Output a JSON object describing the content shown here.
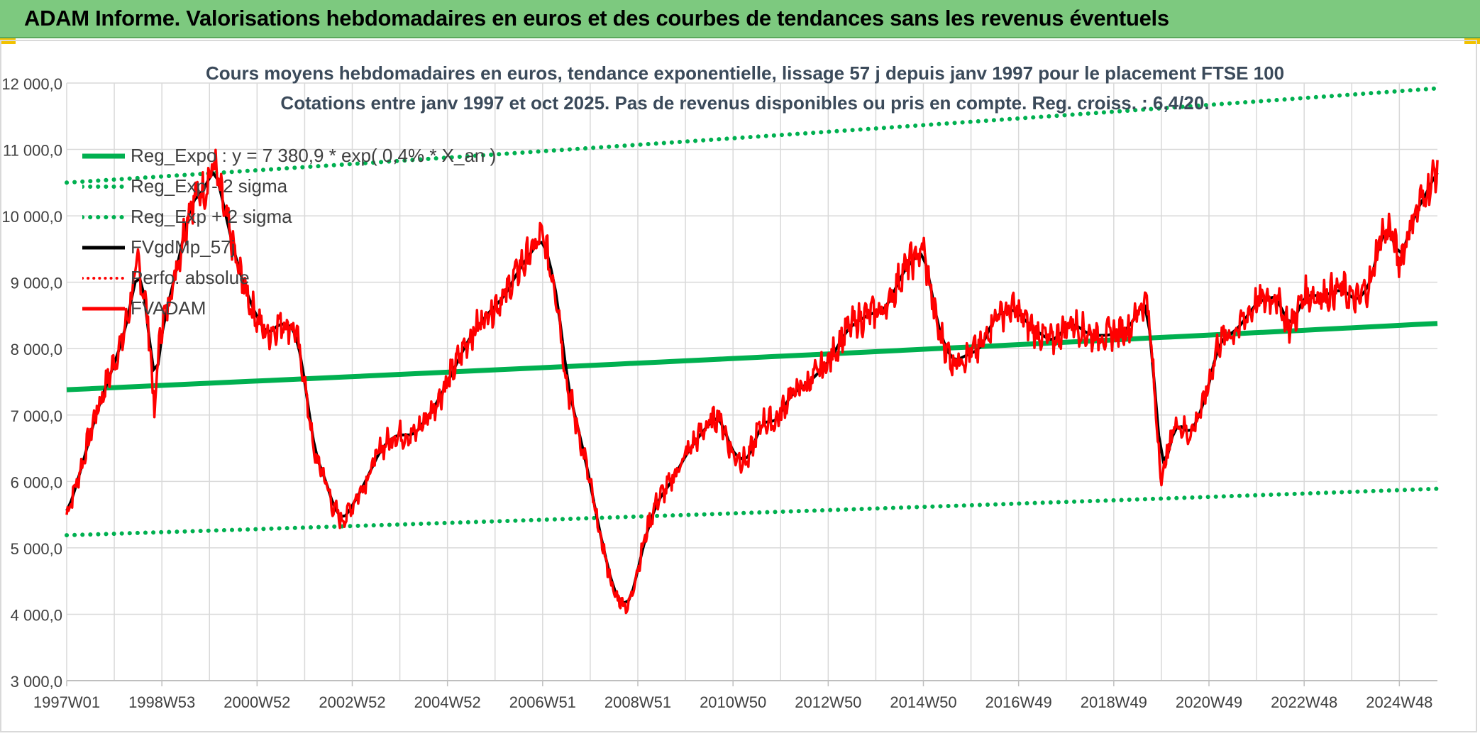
{
  "header": {
    "title": "ADAM Informe. Valorisations hebdomadaires en euros et des courbes de tendances sans les revenus éventuels"
  },
  "colors": {
    "banner": "#7dc97f",
    "reg": "#00b050",
    "sigma": "#00b050",
    "smooth": "#000000",
    "perf": "#ff0000",
    "price": "#ff0000",
    "grid": "#d9d9d9"
  },
  "chart_data": {
    "type": "line",
    "title": "Cours moyens hebdomadaires en euros, tendance exponentielle, lissage 57 j depuis janv 1997 pour le placement FTSE 100",
    "subtitle": "Cotations entre janv 1997 et oct 2025. Pas de revenus disponibles ou pris en compte. Reg. croiss. : 6,4/20.",
    "xlabel": "",
    "ylabel": "",
    "ylim": [
      3000,
      12000
    ],
    "xlim": [
      1997.0,
      2025.8
    ],
    "y_ticks": [
      "3 000,0",
      "4 000,0",
      "5 000,0",
      "6 000,0",
      "7 000,0",
      "8 000,0",
      "9 000,0",
      "10 000,0",
      "11 000,0",
      "12 000,0"
    ],
    "x_ticks": [
      {
        "label": "1997W01",
        "x": 1997.0
      },
      {
        "label": "1998W53",
        "x": 1999.0
      },
      {
        "label": "2000W52",
        "x": 2001.0
      },
      {
        "label": "2002W52",
        "x": 2003.0
      },
      {
        "label": "2004W52",
        "x": 2005.0
      },
      {
        "label": "2006W51",
        "x": 2007.0
      },
      {
        "label": "2008W51",
        "x": 2009.0
      },
      {
        "label": "2010W50",
        "x": 2011.0
      },
      {
        "label": "2012W50",
        "x": 2013.0
      },
      {
        "label": "2014W50",
        "x": 2015.0
      },
      {
        "label": "2016W49",
        "x": 2017.0
      },
      {
        "label": "2018W49",
        "x": 2019.0
      },
      {
        "label": "2020W49",
        "x": 2021.0
      },
      {
        "label": "2022W48",
        "x": 2023.0
      },
      {
        "label": "2024W48",
        "x": 2025.0
      }
    ],
    "grid": true,
    "legend_position": "top-left",
    "series": [
      {
        "name": "Reg_Expo : y = 7 380,9 * exp( 0,4% * X_an )",
        "key": "reg",
        "x": [
          1997.0,
          2025.8
        ],
        "values": [
          7381,
          8380
        ]
      },
      {
        "name": "Reg_Exp - 2 sigma",
        "key": "minus",
        "x": [
          1997.0,
          2025.8
        ],
        "values": [
          5190,
          5890
        ]
      },
      {
        "name": "Reg_Exp + 2 sigma",
        "key": "plus",
        "x": [
          1997.0,
          2025.8
        ],
        "values": [
          10500,
          11920
        ]
      },
      {
        "name": "FVgdMp_57j",
        "key": "smooth"
      },
      {
        "name": "Perfo. absolue",
        "key": "perf"
      },
      {
        "name": "FVADAM",
        "key": "price",
        "x": [
          1997.0,
          1997.3,
          1997.6,
          1997.9,
          1998.2,
          1998.5,
          1998.7,
          1998.85,
          1998.95,
          1999.1,
          1999.3,
          1999.6,
          1999.9,
          2000.1,
          2000.3,
          2000.6,
          2000.9,
          2001.2,
          2001.5,
          2001.8,
          2002.0,
          2002.2,
          2002.4,
          2002.6,
          2002.8,
          2003.0,
          2003.2,
          2003.4,
          2003.6,
          2003.9,
          2004.3,
          2004.7,
          2005.0,
          2005.4,
          2005.8,
          2006.2,
          2006.5,
          2006.8,
          2007.0,
          2007.3,
          2007.5,
          2007.7,
          2007.9,
          2008.2,
          2008.5,
          2008.8,
          2009.0,
          2009.2,
          2009.4,
          2009.7,
          2010.0,
          2010.4,
          2010.7,
          2011.0,
          2011.3,
          2011.6,
          2011.9,
          2012.2,
          2012.6,
          2013.0,
          2013.4,
          2013.8,
          2014.2,
          2014.6,
          2015.0,
          2015.3,
          2015.6,
          2015.9,
          2016.2,
          2016.5,
          2016.9,
          2017.3,
          2017.7,
          2018.1,
          2018.5,
          2018.9,
          2019.3,
          2019.7,
          2020.0,
          2020.15,
          2020.3,
          2020.6,
          2020.9,
          2021.2,
          2021.6,
          2022.0,
          2022.4,
          2022.7,
          2023.0,
          2023.4,
          2023.8,
          2024.1,
          2024.4,
          2024.6,
          2024.8,
          2025.0,
          2025.3,
          2025.6,
          2025.8
        ],
        "values": [
          5500,
          6200,
          7000,
          7600,
          8200,
          9300,
          8500,
          7000,
          8200,
          8600,
          9200,
          10200,
          10400,
          10800,
          10100,
          9200,
          8600,
          8200,
          8400,
          8300,
          7500,
          6400,
          6100,
          5600,
          5400,
          5650,
          5900,
          6200,
          6500,
          6700,
          6700,
          7100,
          7500,
          8100,
          8500,
          8800,
          9200,
          9500,
          9700,
          8800,
          7500,
          6900,
          6300,
          5200,
          4300,
          4100,
          4700,
          5300,
          5700,
          6000,
          6400,
          6800,
          7000,
          6400,
          6300,
          6900,
          6900,
          7300,
          7500,
          7800,
          8300,
          8500,
          8600,
          9200,
          9500,
          8300,
          7800,
          7900,
          8000,
          8500,
          8600,
          8300,
          8100,
          8400,
          8200,
          8200,
          8300,
          8800,
          6000,
          6500,
          6900,
          6700,
          7200,
          8100,
          8300,
          8700,
          8800,
          8300,
          8800,
          8800,
          8900,
          8700,
          9000,
          9700,
          9800,
          9300,
          10000,
          10400,
          10700
        ]
      }
    ]
  }
}
